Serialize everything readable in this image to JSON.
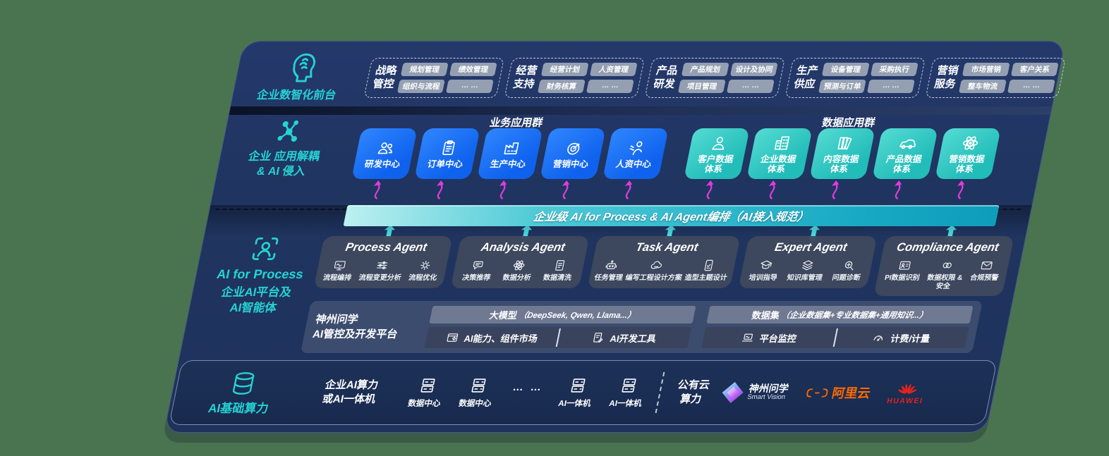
{
  "colors": {
    "background": "#4A7350",
    "panel": "#1F345F",
    "panel_dark": "#1B2E55",
    "blue_box": "#1368F2",
    "teal_box": "#36CCC5",
    "teal_accent": "#25D3D4",
    "band_start": "#BCF0F1",
    "band_end": "#0E9DBB",
    "magenta": "#E23BDC",
    "slate": "#4A5368",
    "chip": "#9BA4B5",
    "alicloud_orange": "#FF6A00",
    "huawei_red": "#E2231A"
  },
  "front_office": {
    "label": "企业数智化前台",
    "icon": "brain",
    "groups": [
      {
        "name_line1": "战略",
        "name_line2": "管控",
        "chips": [
          "规划管理",
          "绩效管理",
          "组织与流程",
          "… …"
        ]
      },
      {
        "name_line1": "经营",
        "name_line2": "支持",
        "chips": [
          "经营计划",
          "人资管理",
          "财务核算",
          "… …"
        ]
      },
      {
        "name_line1": "产品",
        "name_line2": "研发",
        "chips": [
          "产品规划",
          "设计及协同",
          "项目管理",
          "… …"
        ]
      },
      {
        "name_line1": "生产",
        "name_line2": "供应",
        "chips": [
          "设备管理",
          "采购执行",
          "预测与订单",
          "… …"
        ]
      },
      {
        "name_line1": "营销",
        "name_line2": "服务",
        "chips": [
          "市场营销",
          "客户关系",
          "整车物流",
          "… …"
        ]
      }
    ]
  },
  "decouple": {
    "label_line1": "企业 应用解耦",
    "label_line2": "& AI 侵入",
    "icon": "molecule",
    "business": {
      "title": "业务应用群",
      "boxes": [
        {
          "label": "研发中心",
          "icon": "users"
        },
        {
          "label": "订单中心",
          "icon": "clipboard"
        },
        {
          "label": "生产中心",
          "icon": "factory"
        },
        {
          "label": "营销中心",
          "icon": "target"
        },
        {
          "label": "人资中心",
          "icon": "person-wave"
        }
      ]
    },
    "data": {
      "title": "数据应用群",
      "boxes": [
        {
          "label_line1": "客户数据",
          "label_line2": "体系",
          "icon": "person"
        },
        {
          "label_line1": "企业数据",
          "label_line2": "体系",
          "icon": "building"
        },
        {
          "label_line1": "内容数据",
          "label_line2": "体系",
          "icon": "books"
        },
        {
          "label_line1": "产品数据",
          "label_line2": "体系",
          "icon": "car"
        },
        {
          "label_line1": "营销数据",
          "label_line2": "体系",
          "icon": "atom"
        }
      ]
    }
  },
  "ai_band": {
    "title": "企业级 AI for Process & AI Agent编排（AI接入规范）"
  },
  "process_section": {
    "icon": "person-frame",
    "line1": "AI for Process",
    "line2": "企业AI平台及",
    "line3": "AI智能体"
  },
  "agents": [
    {
      "title": "Process Agent",
      "items": [
        {
          "label": "流程编排",
          "icon": "monitor"
        },
        {
          "label": "流程变更分析",
          "icon": "sliders"
        },
        {
          "label": "流程优化",
          "icon": "gear"
        }
      ]
    },
    {
      "title": "Analysis Agent",
      "items": [
        {
          "label": "决策推荐",
          "icon": "chat"
        },
        {
          "label": "数据分析",
          "icon": "atom"
        },
        {
          "label": "数据清洗",
          "icon": "doc"
        }
      ]
    },
    {
      "title": "Task Agent",
      "items": [
        {
          "label": "任务管理",
          "icon": "robot"
        },
        {
          "label": "编写工程设计方案",
          "icon": "cloud"
        },
        {
          "label": "造型主题设计",
          "icon": "tablet"
        }
      ]
    },
    {
      "title": "Expert Agent",
      "items": [
        {
          "label": "培训指导",
          "icon": "grad"
        },
        {
          "label": "知识库管理",
          "icon": "layers"
        },
        {
          "label": "问题诊断",
          "icon": "scope"
        }
      ]
    },
    {
      "title": "Compliance Agent",
      "items": [
        {
          "label": "PI数据识别",
          "icon": "idcard"
        },
        {
          "label": "数据权限 &",
          "label2": "安全",
          "icon": "linkrings"
        },
        {
          "label": "合规预警",
          "icon": "mail"
        }
      ]
    }
  ],
  "platform": {
    "label_line1": "神州问学",
    "label_line2": "AI管控及开发平台",
    "model_bar_zh": "大模型",
    "model_bar_sub": "（DeepSeek, Qwen, Llama...）",
    "model_cells": [
      {
        "label": "AI能力、组件市场",
        "icon": "market"
      },
      {
        "label": "AI开发工具",
        "icon": "tools"
      }
    ],
    "data_bar_zh": "数据集",
    "data_bar_sub": "（企业数据集+专业数据集+通用知识...）",
    "data_cells": [
      {
        "label": "平台监控",
        "icon": "laptop"
      },
      {
        "label": "计费/计量",
        "icon": "gauge"
      }
    ]
  },
  "infra": {
    "label": "AI基础算力",
    "icon": "database",
    "compute_line1": "企业AI算力",
    "compute_line2": "或AI一体机",
    "nodes": [
      {
        "label": "数据中心",
        "icon": "server"
      },
      {
        "label": "数据中心",
        "icon": "server"
      },
      {
        "label": "… …",
        "icon": "dots"
      },
      {
        "label": "AI一体机",
        "icon": "server"
      },
      {
        "label": "AI一体机",
        "icon": "server"
      }
    ],
    "cloud_line1": "公有云",
    "cloud_line2": "算力",
    "vendors": {
      "smartvision_name": "神州问学",
      "smartvision_sub": "Smart Vision",
      "alicloud": "阿里云",
      "huawei": "HUAWEI"
    }
  }
}
